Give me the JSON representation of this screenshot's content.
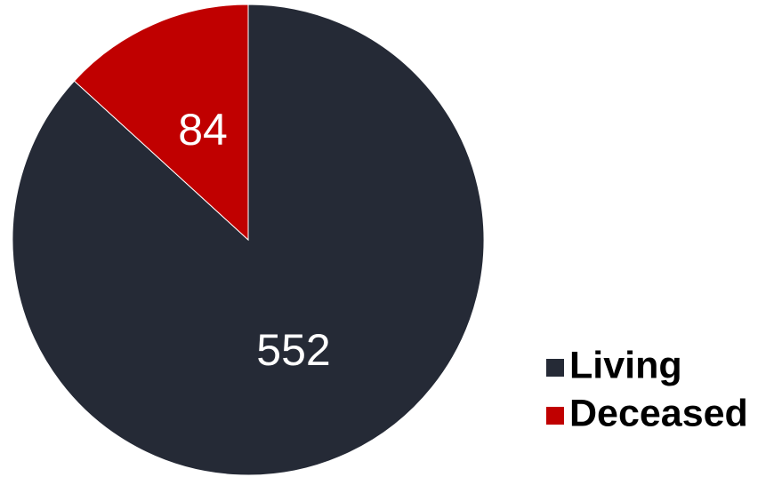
{
  "chart_data": {
    "type": "pie",
    "categories": [
      "Living",
      "Deceased"
    ],
    "values": [
      552,
      84
    ],
    "colors": [
      "#252A36",
      "#C00000"
    ],
    "legend_position": "bottom-right",
    "start_angle": "12 o'clock",
    "direction": "clockwise"
  }
}
